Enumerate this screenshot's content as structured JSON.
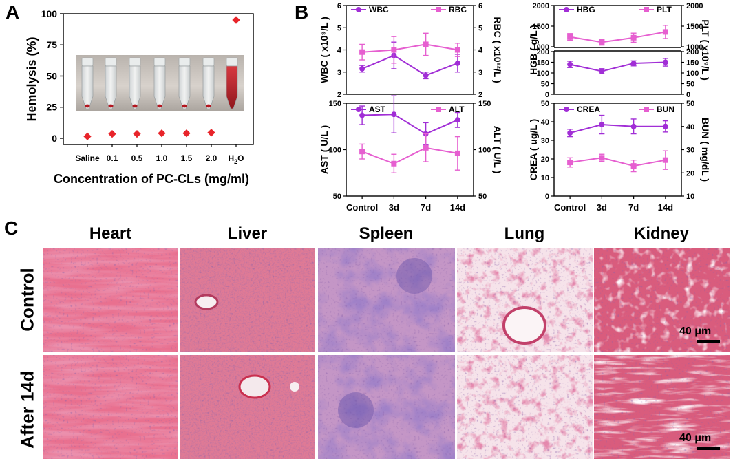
{
  "panels": {
    "a": {
      "letter": "A"
    },
    "b": {
      "letter": "B"
    },
    "c": {
      "letter": "C"
    }
  },
  "chart_data": [
    {
      "id": "hemolysis",
      "type": "scatter",
      "ylabel": "Hemolysis (%)",
      "xlabel": "Concentration of PC-CLs (mg/ml)",
      "categories": [
        "Saline",
        "0.1",
        "0.5",
        "1.0",
        "1.5",
        "2.0",
        "H2O"
      ],
      "values": [
        1.5,
        3.5,
        3.5,
        4.0,
        4.0,
        4.5,
        95
      ],
      "ylim": [
        -5,
        100
      ],
      "yticks": [
        0,
        25,
        50,
        75,
        100
      ],
      "marker_color": "#e8242a",
      "inset": "photo of tubes"
    },
    {
      "id": "wbc-rbc",
      "type": "line",
      "categories": [
        "Control",
        "3d",
        "7d",
        "14d"
      ],
      "left_axis": {
        "label": "WBC ( x10⁹/L )",
        "ylim": [
          2,
          6
        ],
        "ticks": [
          2,
          3,
          4,
          5,
          6
        ]
      },
      "right_axis": {
        "label": "RBC ( x10¹²/L )",
        "ylim": [
          2,
          6
        ],
        "ticks": [
          2,
          3,
          4,
          5,
          6
        ]
      },
      "series": [
        {
          "name": "WBC",
          "axis": "left",
          "color": "#a12ed6",
          "values": [
            3.15,
            3.75,
            2.85,
            3.4
          ],
          "errors": [
            0.15,
            0.6,
            0.15,
            0.4
          ]
        },
        {
          "name": "RBC",
          "axis": "right",
          "color": "#e65fd0",
          "values": [
            3.9,
            4.0,
            4.25,
            4.0
          ],
          "errors": [
            0.35,
            0.6,
            0.5,
            0.3
          ]
        }
      ]
    },
    {
      "id": "hgb-plt",
      "type": "line",
      "categories": [
        "Control",
        "3d",
        "7d",
        "14d"
      ],
      "left_axis": {
        "label": "HGB ( g/L )",
        "ticks": [
          0,
          50,
          100,
          150,
          200,
          1000,
          1500,
          2000
        ],
        "broken": true
      },
      "right_axis": {
        "label": "PLT ( x10⁹/L )",
        "ticks": [
          0,
          50,
          100,
          150,
          200,
          1000,
          1500,
          2000
        ],
        "broken": true
      },
      "series": [
        {
          "name": "HBG",
          "axis": "left",
          "color": "#a12ed6",
          "values": [
            140,
            108,
            145,
            150
          ],
          "errors": [
            15,
            12,
            12,
            18
          ]
        },
        {
          "name": "PLT",
          "axis": "right",
          "color": "#e65fd0",
          "values": [
            1240,
            1110,
            1220,
            1360
          ],
          "errors": [
            80,
            70,
            110,
            160
          ]
        }
      ]
    },
    {
      "id": "ast-alt",
      "type": "line",
      "categories": [
        "Control",
        "3d",
        "7d",
        "14d"
      ],
      "left_axis": {
        "label": "AST ( U/L )",
        "ylim": [
          50,
          150
        ],
        "ticks": [
          50,
          100,
          150
        ]
      },
      "right_axis": {
        "label": "ALT ( U/L )",
        "ylim": [
          50,
          150
        ],
        "ticks": [
          50,
          100,
          150
        ]
      },
      "series": [
        {
          "name": "AST",
          "axis": "left",
          "color": "#a12ed6",
          "values": [
            137,
            138,
            117,
            132
          ],
          "errors": [
            10,
            20,
            12,
            8
          ]
        },
        {
          "name": "ALT",
          "axis": "right",
          "color": "#e65fd0",
          "values": [
            98,
            85,
            102,
            96
          ],
          "errors": [
            8,
            10,
            15,
            18
          ]
        }
      ]
    },
    {
      "id": "crea-bun",
      "type": "line",
      "categories": [
        "Control",
        "3d",
        "7d",
        "14d"
      ],
      "left_axis": {
        "label": "CREA ( ug/L )",
        "ylim": [
          0,
          50
        ],
        "ticks": [
          0,
          10,
          20,
          30,
          40,
          50
        ]
      },
      "right_axis": {
        "label": "BUN ( mg/dL )",
        "ylim": [
          10,
          50
        ],
        "ticks": [
          10,
          20,
          30,
          40,
          50
        ]
      },
      "series": [
        {
          "name": "CREA",
          "axis": "left",
          "color": "#a12ed6",
          "values": [
            34,
            38.5,
            37.5,
            37.5
          ],
          "errors": [
            2,
            5,
            4,
            3
          ]
        },
        {
          "name": "BUN",
          "axis": "right",
          "color": "#e65fd0",
          "values": [
            24.5,
            26.5,
            23,
            25.5
          ],
          "errors": [
            2,
            1.5,
            2.5,
            4
          ]
        }
      ]
    }
  ],
  "histology": {
    "columns": [
      "Heart",
      "Liver",
      "Spleen",
      "Lung",
      "Kidney"
    ],
    "rows": [
      "Control",
      "After 14d"
    ],
    "scale_bar": "40 μm"
  }
}
